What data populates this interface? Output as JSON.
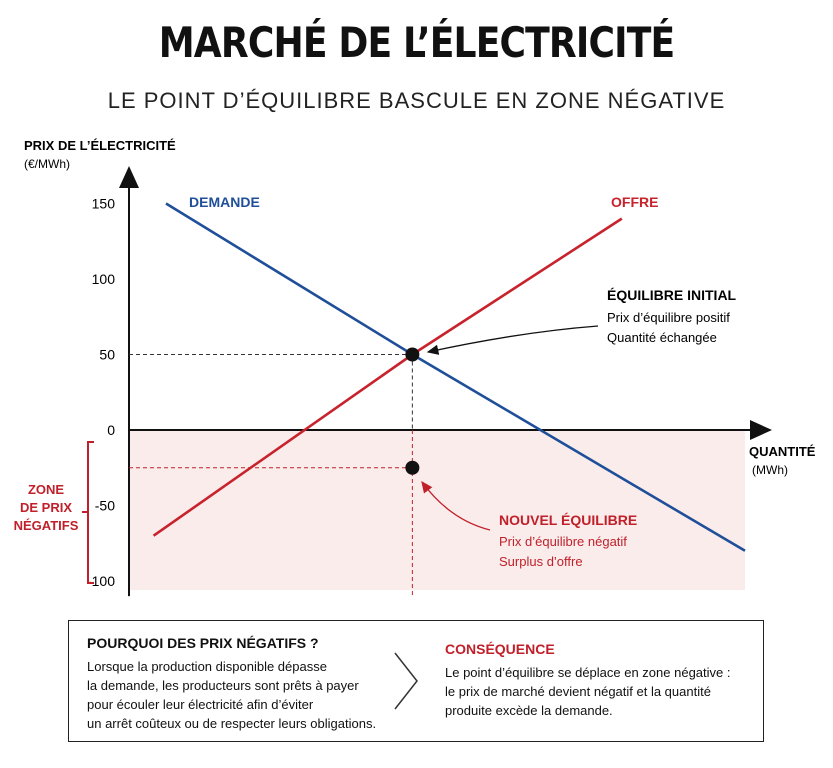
{
  "header": {
    "title": "MARCHÉ DE L’ÉLECTRICITÉ",
    "subtitle": "LE POINT D’ÉQUILIBRE BASCULE EN ZONE NÉGATIVE"
  },
  "chart_data": {
    "type": "line",
    "ylabel_line1": "PRIX DE L’ÉLECTRICITÉ",
    "ylabel_line2": "(€/MWh)",
    "xlabel_line1": "QUANTITÉ",
    "xlabel_line2": "(MWh)",
    "y_ticks": [
      150,
      100,
      50,
      0,
      -50,
      -100
    ],
    "y_tick_labels": [
      "150",
      "100",
      "50",
      "0",
      "-50",
      "-100"
    ],
    "ylim": [
      -110,
      170
    ],
    "xlim": [
      0,
      100
    ],
    "series": [
      {
        "name": "DEMANDE",
        "color": "#1f4f99",
        "points": [
          [
            6,
            150
          ],
          [
            46,
            50
          ],
          [
            100,
            -80
          ]
        ]
      },
      {
        "name": "OFFRE",
        "color": "#c8232c",
        "points": [
          [
            4,
            -70
          ],
          [
            46,
            50
          ],
          [
            80,
            140
          ]
        ]
      }
    ],
    "equilibria": [
      {
        "x": 46,
        "y": 50,
        "title": "ÉQUILIBRE INITIAL",
        "line1": "Prix d’équilibre positif",
        "line2": "Quantité échangée"
      },
      {
        "x": 46,
        "y": -25,
        "title": "NOUVEL ÉQUILIBRE",
        "line1": "Prix d’équilibre négatif",
        "line2": "Surplus d’offre"
      }
    ],
    "negative_zone": {
      "label_lines": [
        "ZONE",
        "DE PRIX",
        "NÉGATIFS"
      ],
      "from": -110,
      "to": 0,
      "color": "#fbecec"
    },
    "colors": {
      "demand": "#1f4f99",
      "supply": "#c8232c",
      "accent_red": "#c0202a"
    }
  },
  "info": {
    "left_title": "POURQUOI DES PRIX NÉGATIFS ?",
    "left_lines": [
      "Lorsque la production disponible dépasse",
      "la demande, les producteurs sont prêts à payer",
      "pour écouler leur électricité afin d’éviter",
      "un arrêt coûteux ou de respecter leurs obligations."
    ],
    "right_title": "CONSÉQUENCE",
    "right_lines": [
      "Le point d’équilibre se déplace en zone négative :",
      "le prix de marché devient négatif et la quantité",
      "produite excède la demande."
    ]
  }
}
